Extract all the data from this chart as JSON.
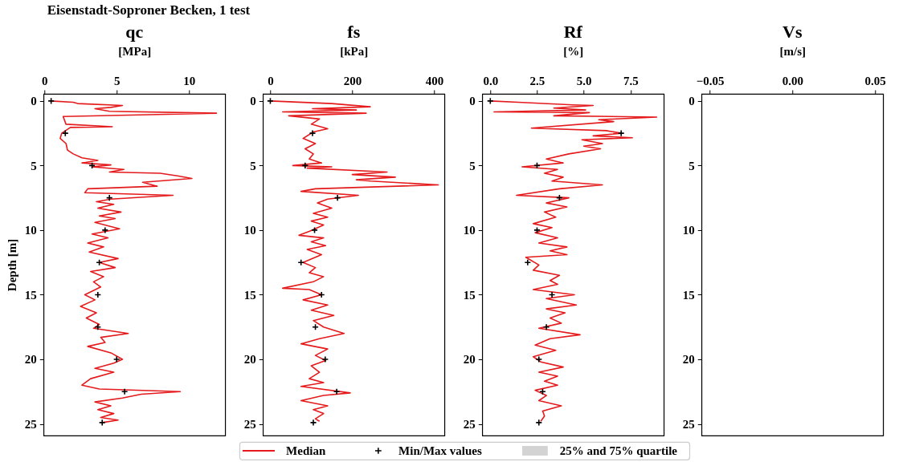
{
  "chart_data": [
    {
      "type": "line",
      "title": "qc",
      "xlabel": "[MPa]",
      "ylabel": "Depth [m]",
      "annotations": [
        "Eisenstadt-Soproner Becken,  1 test"
      ],
      "legend": "bottom",
      "xlim": [
        -0.05,
        12.5
      ],
      "xticks": [
        0,
        5,
        10
      ],
      "ylim": [
        25.9,
        -0.55
      ],
      "yticks": [
        0,
        5,
        10,
        15,
        20,
        25
      ],
      "series": [
        {
          "name": "Median",
          "type": "line",
          "color": "#e41a1c",
          "x": [
            0.45,
            2.0,
            2.3,
            5.4,
            4.6,
            3.5,
            4.5,
            11.9,
            1.3,
            1.5,
            4.7,
            1.8,
            1.2,
            1.1,
            1.5,
            1.6,
            2.0,
            2.6,
            3.7,
            2.6,
            4.6,
            3.3,
            5.5,
            4.5,
            8.0,
            9.2,
            10.2,
            6.8,
            7.8,
            3.0,
            2.8,
            8.9,
            4.6,
            3.6,
            4.8,
            3.7,
            5.3,
            3.8,
            4.9,
            3.5,
            4.5,
            5.2,
            3.3,
            4.4,
            3.0,
            4.1,
            3.1,
            5.1,
            3.8,
            4.9,
            3.2,
            4.1,
            3.4,
            3.9,
            2.8,
            3.5,
            2.5,
            3.6,
            2.9,
            3.8,
            3.4,
            5.8,
            3.9,
            4.2,
            3.0,
            4.6,
            5.4,
            4.8,
            3.5,
            4.8,
            3.2,
            2.6,
            3.8,
            9.4,
            6.7,
            5.4,
            3.5,
            4.6,
            3.7,
            4.8,
            3.9,
            5.1,
            4.0
          ],
          "values": [
            0,
            0.1,
            0.2,
            0.35,
            0.5,
            0.6,
            0.8,
            0.95,
            1.2,
            1.8,
            2.0,
            2.05,
            2.5,
            2.9,
            3.3,
            3.8,
            4.1,
            4.4,
            4.6,
            4.8,
            4.95,
            5.1,
            5.3,
            5.5,
            5.6,
            5.8,
            6.0,
            6.3,
            6.6,
            6.8,
            7.1,
            7.3,
            7.6,
            7.8,
            8.0,
            8.3,
            8.6,
            8.9,
            9.1,
            9.4,
            9.7,
            9.9,
            10.3,
            10.6,
            11.0,
            11.3,
            11.7,
            12.2,
            12.5,
            12.9,
            13.2,
            13.6,
            14.0,
            14.4,
            15.0,
            15.4,
            15.9,
            16.4,
            16.8,
            17.3,
            17.6,
            18.0,
            18.3,
            18.7,
            19.0,
            19.5,
            20.0,
            20.3,
            20.7,
            21.0,
            21.5,
            22.0,
            22.3,
            22.5,
            22.7,
            23.0,
            23.3,
            23.6,
            23.9,
            24.2,
            24.5,
            24.7,
            24.9
          ]
        },
        {
          "name": "Min/Max values",
          "type": "scatter",
          "marker": "cross",
          "color": "#000000",
          "x": [
            0.47,
            1.45,
            3.3,
            4.5,
            4.2,
            3.8,
            3.7,
            3.7,
            5.0,
            5.55,
            4.0
          ],
          "values": [
            0,
            2.5,
            5,
            7.5,
            10,
            12.5,
            15,
            17.5,
            20,
            22.5,
            24.9
          ]
        },
        {
          "name": "25% and 75% quartile",
          "type": "area",
          "color": "#d3d3d3"
        }
      ]
    },
    {
      "type": "line",
      "title": "fs",
      "xlabel": "[kPa]",
      "xlim": [
        -18,
        425
      ],
      "xticks": [
        0,
        200,
        400
      ],
      "ylim": [
        25.9,
        -0.55
      ],
      "yticks": [
        0,
        5,
        10,
        15,
        20,
        25
      ],
      "series": [
        {
          "type": "line",
          "color": "#e41a1c",
          "x": [
            0,
            150,
            244,
            103,
            210,
            30,
            234,
            45,
            120,
            100,
            140,
            105,
            80,
            110,
            85,
            105,
            95,
            125,
            55,
            150,
            90,
            285,
            200,
            305,
            210,
            245,
            410,
            110,
            75,
            215,
            140,
            115,
            150,
            105,
            140,
            100,
            130,
            95,
            70,
            130,
            100,
            135,
            90,
            125,
            80,
            110,
            95,
            130,
            105,
            30,
            95,
            125,
            80,
            140,
            100,
            155,
            105,
            130,
            180,
            120,
            75,
            140,
            110,
            135,
            100,
            120,
            95,
            130,
            75,
            195,
            130,
            75,
            140,
            105,
            130,
            110,
            120
          ],
          "values": [
            0,
            0.2,
            0.45,
            0.6,
            0.7,
            0.85,
            0.95,
            1.15,
            1.4,
            1.8,
            2.15,
            2.4,
            2.9,
            3.3,
            3.7,
            4.1,
            4.5,
            4.8,
            5.0,
            5.1,
            5.2,
            5.5,
            5.7,
            5.9,
            6.1,
            6.2,
            6.5,
            6.8,
            7.0,
            7.3,
            7.6,
            7.9,
            8.3,
            8.7,
            9.0,
            9.3,
            9.6,
            10.1,
            10.4,
            10.6,
            10.9,
            11.2,
            11.5,
            11.9,
            12.5,
            12.9,
            13.3,
            13.6,
            14.0,
            14.5,
            14.6,
            15.0,
            15.4,
            15.8,
            16.2,
            16.6,
            17.0,
            17.5,
            18.0,
            18.4,
            18.8,
            19.2,
            19.7,
            20.1,
            20.5,
            21.0,
            21.5,
            21.8,
            22.1,
            22.6,
            22.8,
            23.2,
            23.6,
            23.9,
            24.2,
            24.6,
            24.8
          ]
        },
        {
          "type": "scatter",
          "marker": "cross",
          "color": "#000000",
          "x": [
            0,
            103,
            85,
            164,
            108,
            75,
            125,
            110,
            134,
            162,
            105
          ],
          "values": [
            0,
            2.5,
            5,
            7.5,
            10,
            12.5,
            15,
            17.5,
            20,
            22.5,
            24.9
          ]
        }
      ]
    },
    {
      "type": "line",
      "title": "Rf",
      "xlabel": "[%]",
      "xlim": [
        -0.43,
        9.28
      ],
      "xticks": [
        {
          "value": 0,
          "label": "0.0"
        },
        {
          "value": 2.5,
          "label": "2.5"
        },
        {
          "value": 5,
          "label": "5.0"
        },
        {
          "value": 7.5,
          "label": "7.5"
        }
      ],
      "ylim": [
        25.9,
        -0.55
      ],
      "yticks": [
        0,
        5,
        10,
        15,
        20,
        25
      ],
      "series": [
        {
          "type": "line",
          "color": "#e41a1c",
          "x": [
            0,
            1.5,
            4.4,
            5.5,
            3.4,
            5.1,
            0.2,
            5.3,
            3.4,
            8.9,
            5.8,
            6.6,
            2.2,
            6.2,
            7.0,
            5.5,
            7.6,
            4.9,
            6.0,
            5.0,
            5.9,
            4.2,
            3.0,
            3.9,
            1.7,
            3.6,
            2.9,
            3.9,
            3.3,
            6.0,
            3.7,
            1.4,
            4.2,
            3.0,
            4.1,
            2.9,
            3.5,
            2.3,
            3.3,
            2.4,
            3.6,
            2.6,
            4.1,
            3.2,
            4.1,
            1.9,
            2.6,
            2.3,
            3.7,
            3.2,
            3.6,
            2.3,
            4.5,
            3.0,
            4.6,
            3.0,
            4.0,
            3.2,
            3.8,
            2.6,
            4.8,
            3.2,
            2.4,
            3.5,
            2.3,
            2.7,
            3.9,
            2.6,
            3.6,
            2.9,
            3.6,
            2.4,
            3.0,
            2.6,
            3.8,
            2.8,
            2.9,
            2.7
          ],
          "values": [
            0,
            0.1,
            0.3,
            0.35,
            0.55,
            0.7,
            0.85,
            0.9,
            1.15,
            1.25,
            1.45,
            1.6,
            2.1,
            2.3,
            2.5,
            2.7,
            2.85,
            3.0,
            3.3,
            3.5,
            3.7,
            4.1,
            4.5,
            4.8,
            5.1,
            5.3,
            5.6,
            5.9,
            6.2,
            6.5,
            6.8,
            7.3,
            7.5,
            7.9,
            8.2,
            8.6,
            9.0,
            9.5,
            9.8,
            10.2,
            10.6,
            11.0,
            11.3,
            11.6,
            11.9,
            12.1,
            12.7,
            13.1,
            13.5,
            13.9,
            14.2,
            14.6,
            15.0,
            15.3,
            15.8,
            16.1,
            16.4,
            16.8,
            17.2,
            17.6,
            18.1,
            18.4,
            18.9,
            19.3,
            19.8,
            20.2,
            20.6,
            21.0,
            21.3,
            21.7,
            22.0,
            22.4,
            22.8,
            23.2,
            23.6,
            24.0,
            24.4,
            24.8
          ]
        },
        {
          "type": "scatter",
          "marker": "cross",
          "color": "#000000",
          "x": [
            0,
            7.0,
            2.5,
            3.7,
            2.5,
            2.0,
            3.3,
            3.0,
            2.6,
            2.8,
            2.6
          ],
          "values": [
            0,
            2.5,
            5,
            7.5,
            10,
            12.5,
            15,
            17.5,
            20,
            22.5,
            24.9
          ]
        }
      ]
    },
    {
      "type": "line",
      "title": "Vs",
      "xlabel": "[m/s]",
      "xlim": [
        -0.055,
        0.055
      ],
      "xticks": [
        {
          "value": -0.05,
          "label": "−0.05"
        },
        {
          "value": 0,
          "label": "0.00"
        },
        {
          "value": 0.05,
          "label": "0.05"
        }
      ],
      "ylim": [
        25.9,
        -0.55
      ],
      "yticks": [
        0,
        5,
        10,
        15,
        20,
        25
      ]
    }
  ]
}
